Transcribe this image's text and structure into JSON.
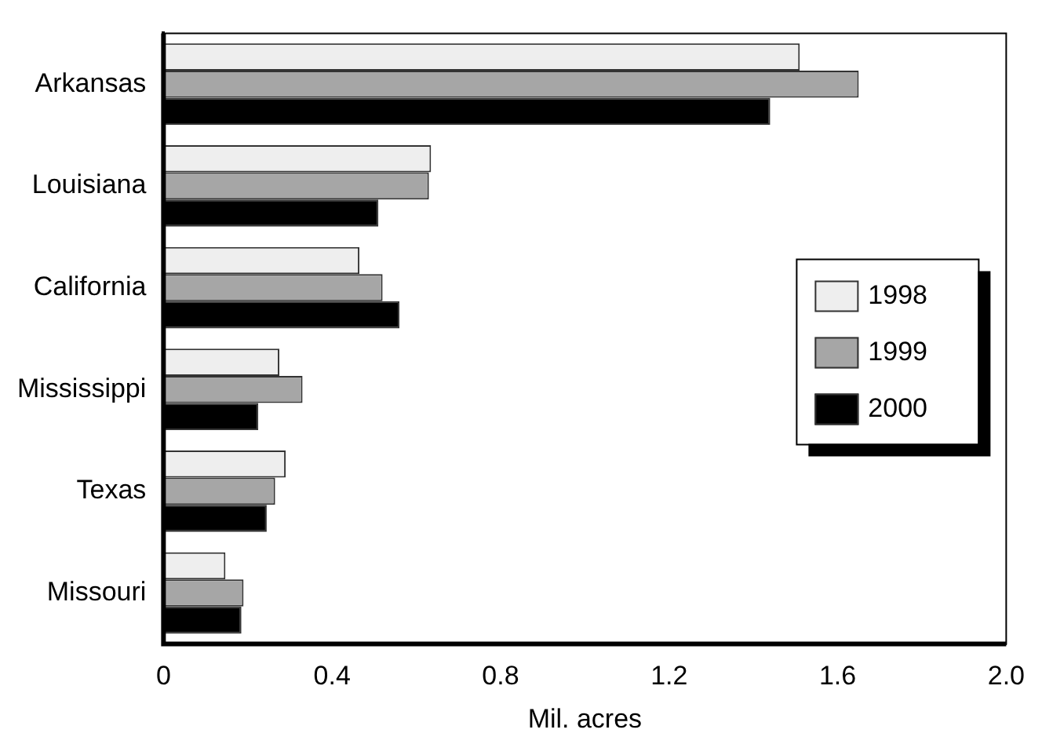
{
  "chart_data": {
    "type": "bar",
    "orientation": "horizontal",
    "xlabel": "Mil. acres",
    "categories": [
      "Arkansas",
      "Louisiana",
      "California",
      "Mississippi",
      "Texas",
      "Missouri"
    ],
    "series": [
      {
        "name": "1998",
        "color": "#eeeeee",
        "values": [
          1.51,
          0.635,
          0.465,
          0.275,
          0.29,
          0.147
        ]
      },
      {
        "name": "1999",
        "color": "#a6a6a6",
        "values": [
          1.65,
          0.63,
          0.52,
          0.33,
          0.265,
          0.19
        ]
      },
      {
        "name": "2000",
        "color": "#000000",
        "values": [
          1.44,
          0.51,
          0.56,
          0.225,
          0.245,
          0.185
        ]
      }
    ],
    "xlim": [
      0,
      2.0
    ],
    "xticks": [
      0,
      0.4,
      0.8,
      1.2,
      1.6,
      {
        "value": 2.0,
        "label": "2.0"
      }
    ],
    "grid": false,
    "legend": "right"
  }
}
